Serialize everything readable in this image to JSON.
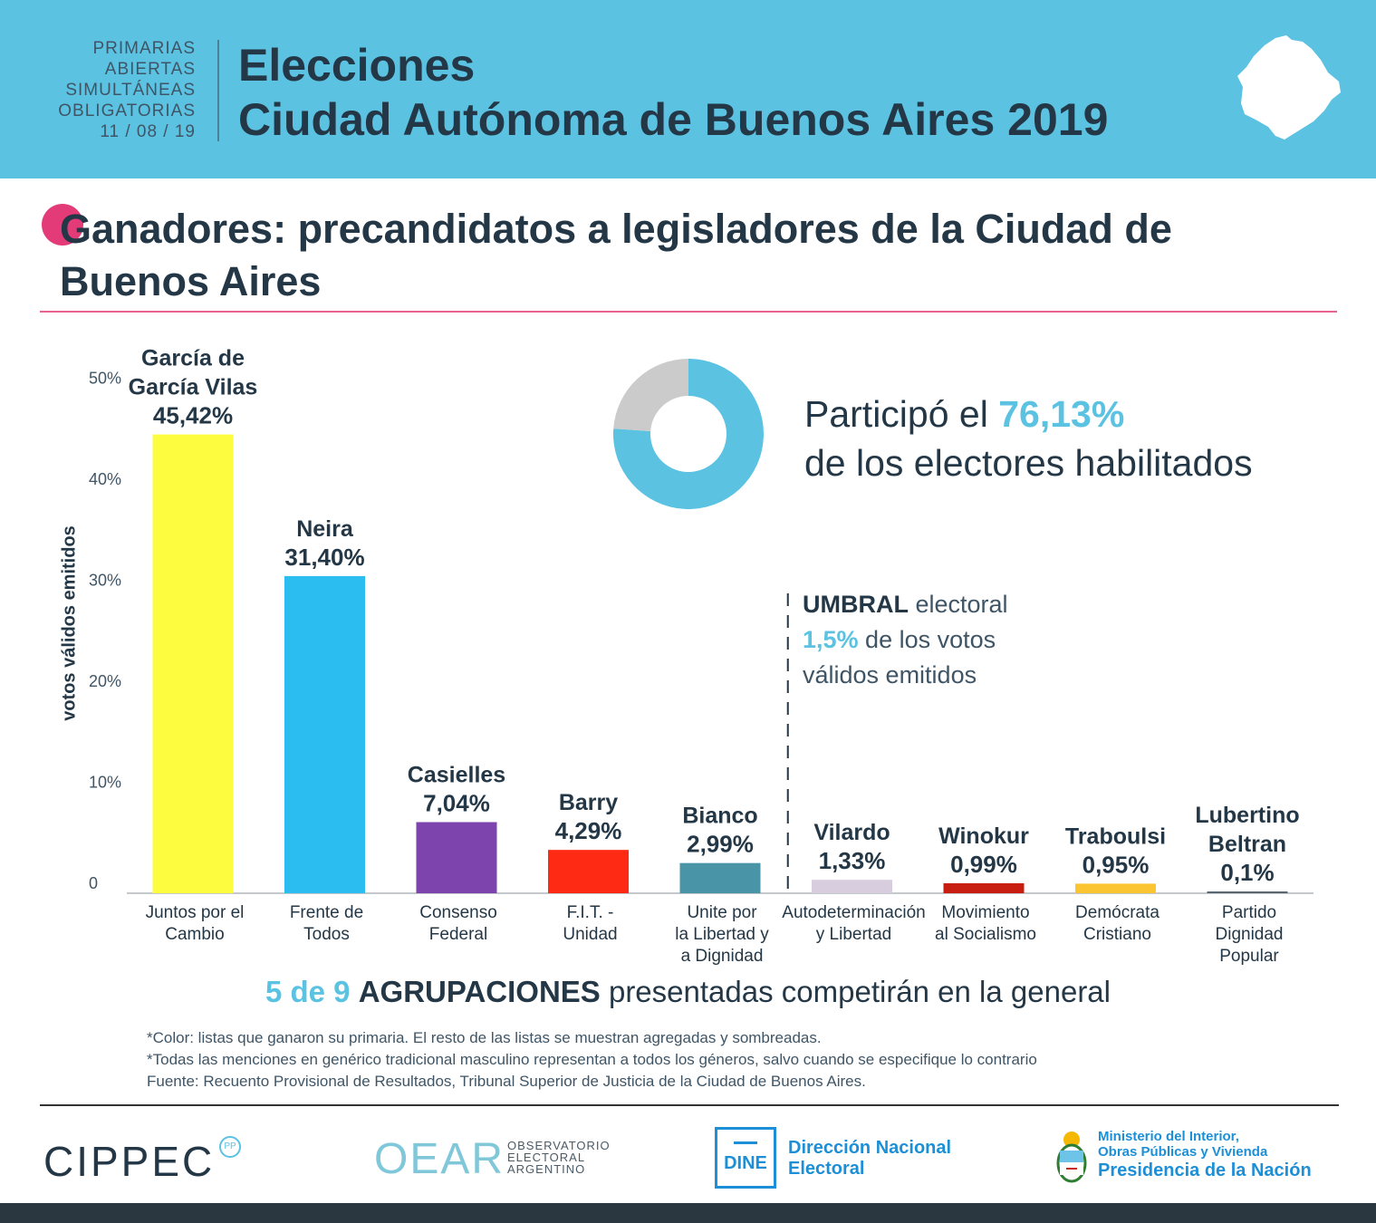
{
  "header": {
    "paso_lines": [
      "PRIMARIAS",
      "ABIERTAS",
      "SIMULTÁNEAS",
      "OBLIGATORIAS",
      "11 / 08 / 19"
    ],
    "title_line1": "Elecciones",
    "title_line2": "Ciudad Autónoma de Buenos Aires 2019"
  },
  "main_title": "Ganadores: precandidatos a legisladores de la Ciudad de Buenos Aires",
  "participation": {
    "prefix": "Participó el ",
    "percent_label": "76,13%",
    "suffix": "de los electores habilitados",
    "value": 76.13
  },
  "threshold": {
    "word": "UMBRAL",
    "word2": " electoral",
    "percent_label": "1,5%",
    "line2_rest": " de los votos",
    "line3": "válidos emitidos",
    "value": 1.5
  },
  "summary": {
    "count": "5 de 9",
    "agrupaciones": "AGRUPACIONES",
    "rest": "presentadas competirán en la general"
  },
  "notes": [
    "*Color: listas que ganaron su primaria. El resto de las listas se muestran agregadas y sombreadas.",
    "*Todas las menciones en genérico tradicional masculino representan a todos los géneros, salvo cuando se especifique lo contrario",
    "Fuente: Recuento Provisional de Resultados, Tribunal Superior de Justicia de la Ciudad de Buenos Aires."
  ],
  "footer": {
    "cippec": "CIPPEC",
    "cippec_sup": "PP",
    "oear": "OEAR",
    "oear_sub": [
      "OBSERVATORIO",
      "ELECTORAL",
      "ARGENTINO"
    ],
    "dine": "DINE",
    "dine_name": [
      "Dirección Nacional",
      "Electoral"
    ],
    "ministerio": [
      "Ministerio del Interior,",
      "Obras Públicas y Vivienda"
    ],
    "presidencia": "Presidencia de la Nación"
  },
  "colors": {
    "header_bg": "#5bc2e2",
    "accent": "#5bc2e2",
    "pink": "#e23b78",
    "text_dark": "#243746"
  },
  "chart_data": {
    "type": "bar",
    "title": "Ganadores: precandidatos a legisladores de la Ciudad de Buenos Aires",
    "ylabel": "votos válidos emitidos",
    "xlabel": "",
    "ylim": [
      0,
      50
    ],
    "yticks": [
      {
        "value": 0,
        "label": "0"
      },
      {
        "value": 10,
        "label": "10%"
      },
      {
        "value": 20,
        "label": "20%"
      },
      {
        "value": 30,
        "label": "30%"
      },
      {
        "value": 40,
        "label": "40%"
      },
      {
        "value": 50,
        "label": "50%"
      }
    ],
    "threshold": 1.5,
    "bars": [
      {
        "party": [
          "Juntos por el",
          "Cambio"
        ],
        "candidate": [
          "García de",
          "García Vilas"
        ],
        "value": 45.42,
        "label": "45,42%",
        "color": "#fdfc3f"
      },
      {
        "party": [
          "Frente de",
          "Todos"
        ],
        "candidate": [
          "Neira"
        ],
        "value": 31.4,
        "label": "31,40%",
        "color": "#2bbcf0"
      },
      {
        "party": [
          "Consenso",
          "Federal"
        ],
        "candidate": [
          "Casielles"
        ],
        "value": 7.04,
        "label": "7,04%",
        "color": "#7e44ad"
      },
      {
        "party": [
          "F.I.T. -",
          "Unidad"
        ],
        "candidate": [
          "Barry"
        ],
        "value": 4.29,
        "label": "4,29%",
        "color": "#ff2a14"
      },
      {
        "party": [
          "Unite por",
          "la Libertad y",
          "a Dignidad"
        ],
        "candidate": [
          "Bianco"
        ],
        "value": 2.99,
        "label": "2,99%",
        "color": "#4a94a8"
      },
      {
        "party": [
          "Autodeterminación",
          "y Libertad"
        ],
        "candidate": [
          "Vilardo"
        ],
        "value": 1.33,
        "label": "1,33%",
        "color": "#d8ccdf"
      },
      {
        "party": [
          "Movimiento",
          "al Socialismo"
        ],
        "candidate": [
          "Winokur"
        ],
        "value": 0.99,
        "label": "0,99%",
        "color": "#c81d11"
      },
      {
        "party": [
          "Demócrata",
          "Cristiano"
        ],
        "candidate": [
          "Traboulsi"
        ],
        "value": 0.95,
        "label": "0,95%",
        "color": "#fbc531"
      },
      {
        "party": [
          "Partido",
          "Dignidad",
          "Popular"
        ],
        "candidate": [
          "Lubertino",
          "Beltran"
        ],
        "value": 0.1,
        "label": "0,1%",
        "color": "#5b6770"
      }
    ]
  }
}
